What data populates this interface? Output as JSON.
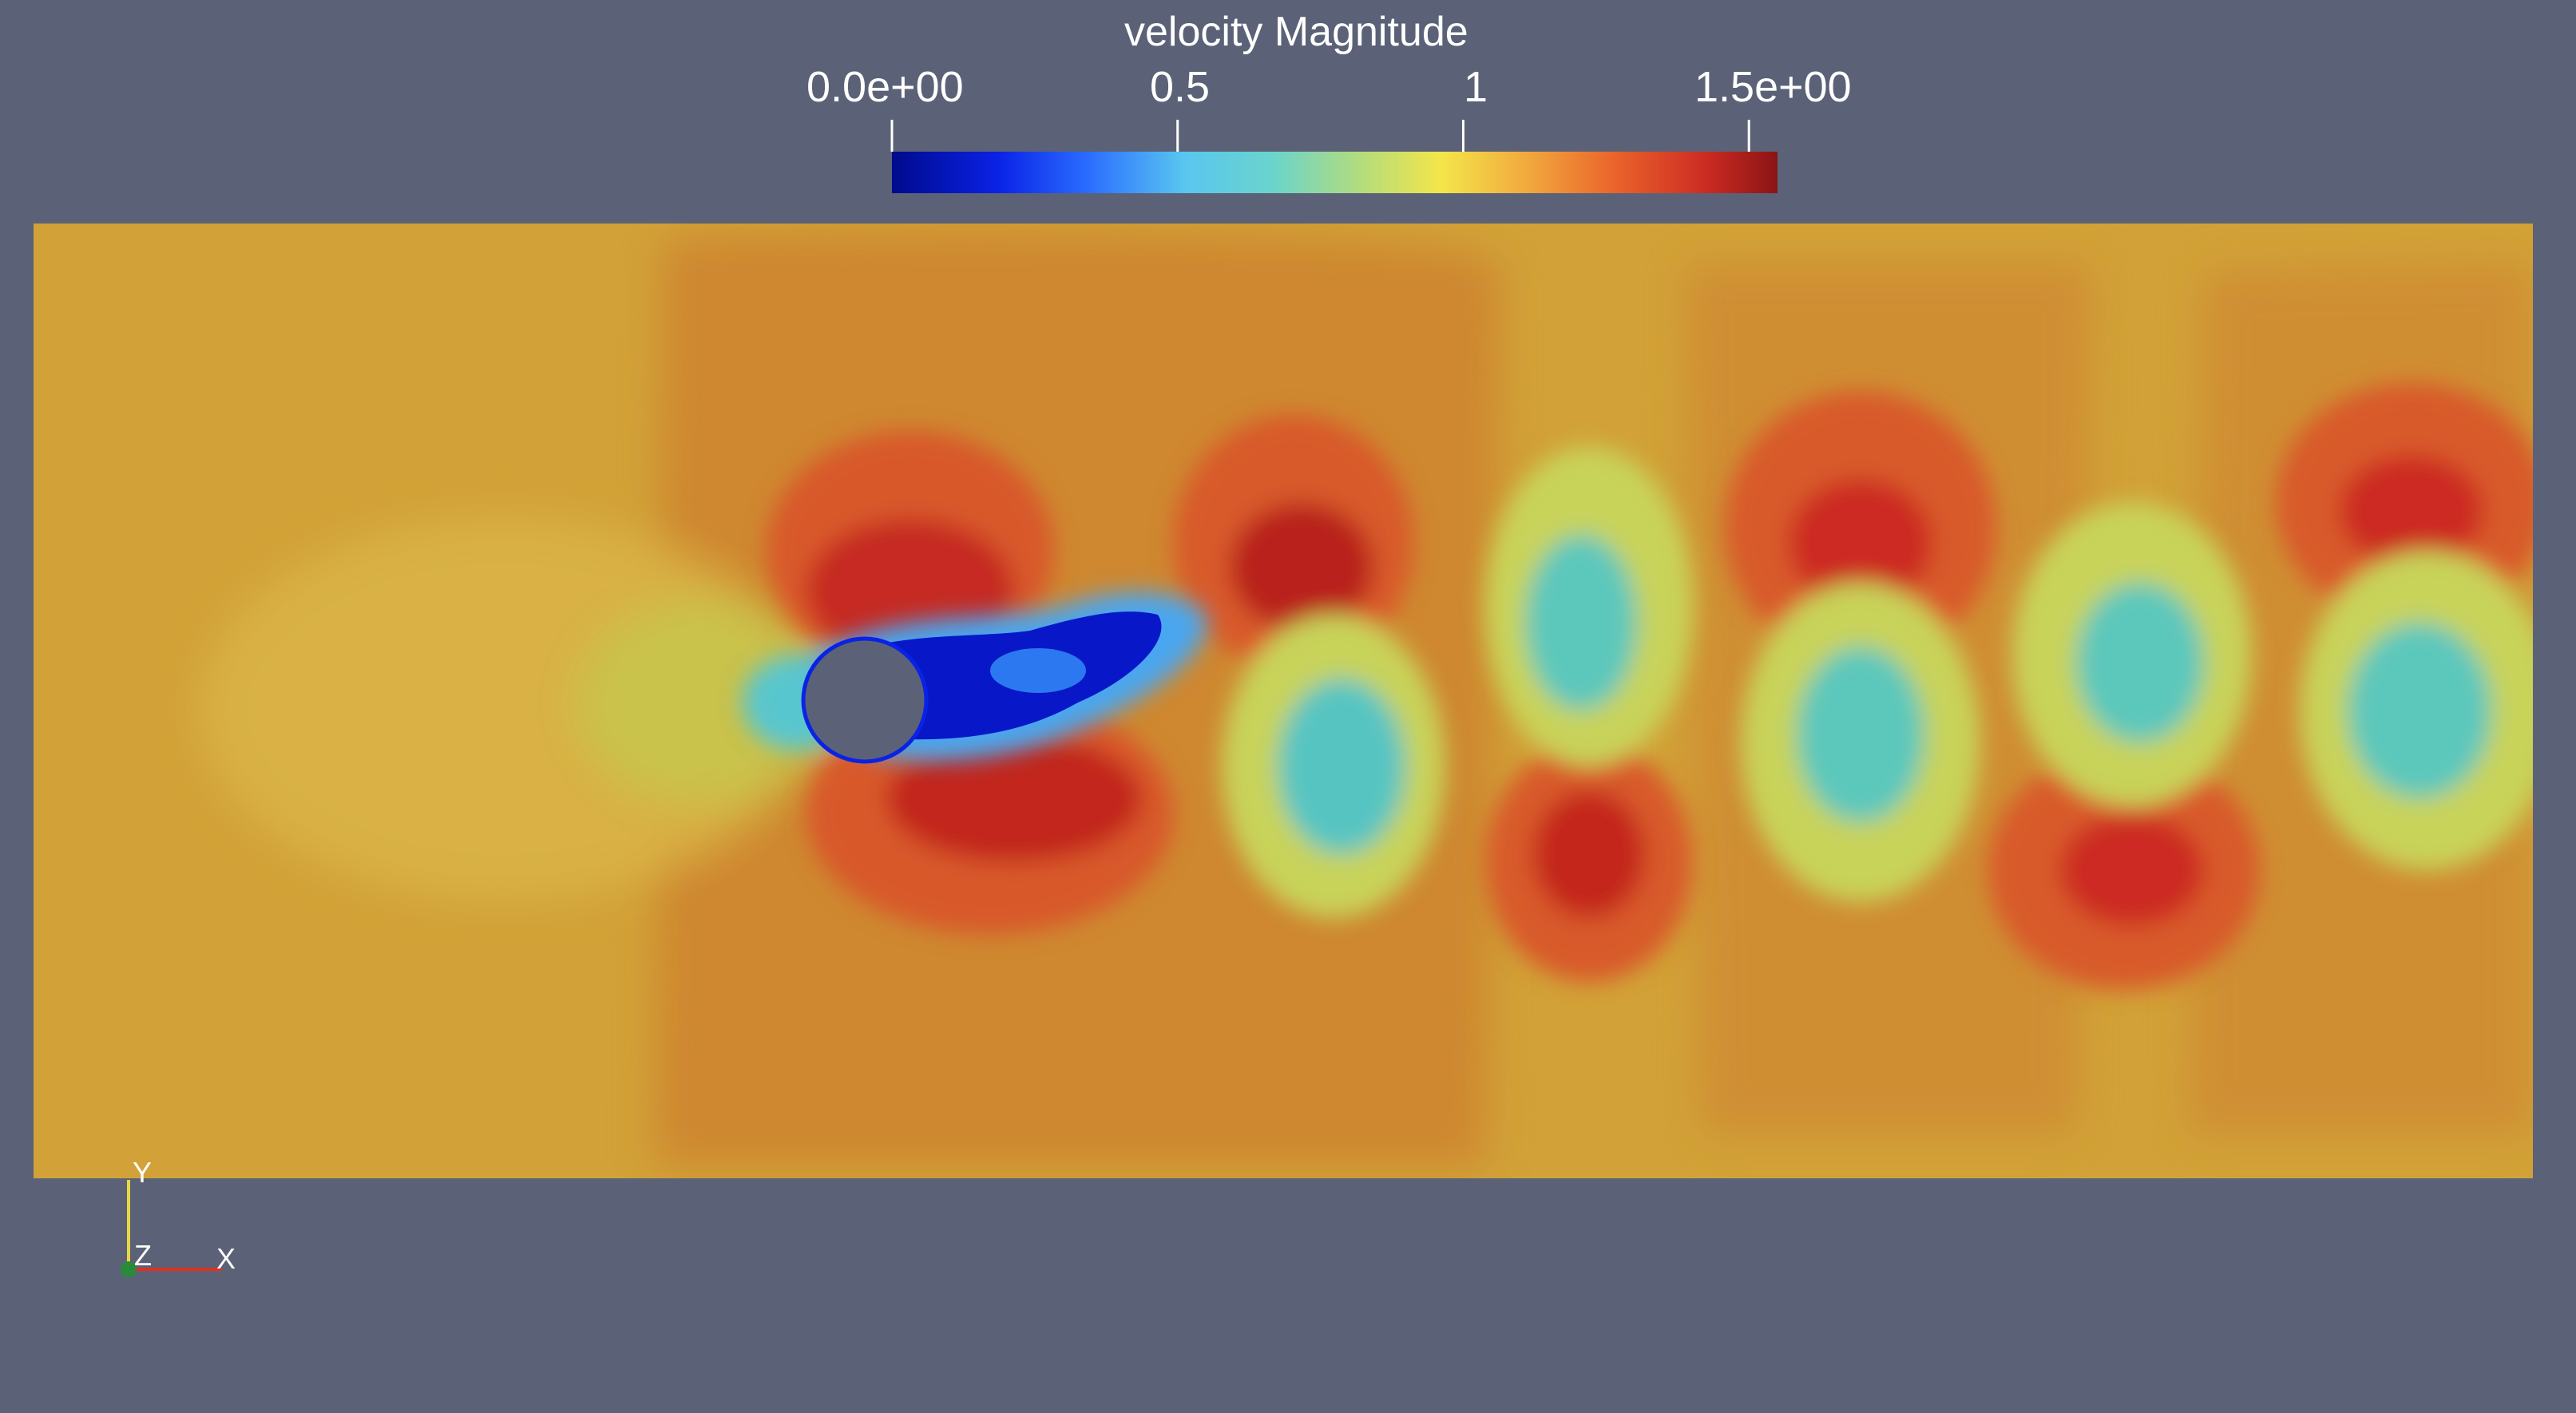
{
  "colorbar": {
    "title": "velocity Magnitude",
    "ticks": [
      {
        "label": "0.0e+00",
        "value": 0.0
      },
      {
        "label": "0.5",
        "value": 0.5
      },
      {
        "label": "1",
        "value": 1.0
      },
      {
        "label": "1.5e+00",
        "value": 1.5
      }
    ],
    "range": [
      0.0,
      1.55
    ]
  },
  "axes_triad": {
    "y_label": "Y",
    "z_label": "Z",
    "x_label": "X"
  },
  "colors": {
    "background": "#5b6277",
    "domain_base": "#d2a238",
    "cylinder": "#5b6277",
    "x_axis": "#e03020",
    "y_axis": "#e8d840",
    "z_axis": "#2a8a3a"
  }
}
